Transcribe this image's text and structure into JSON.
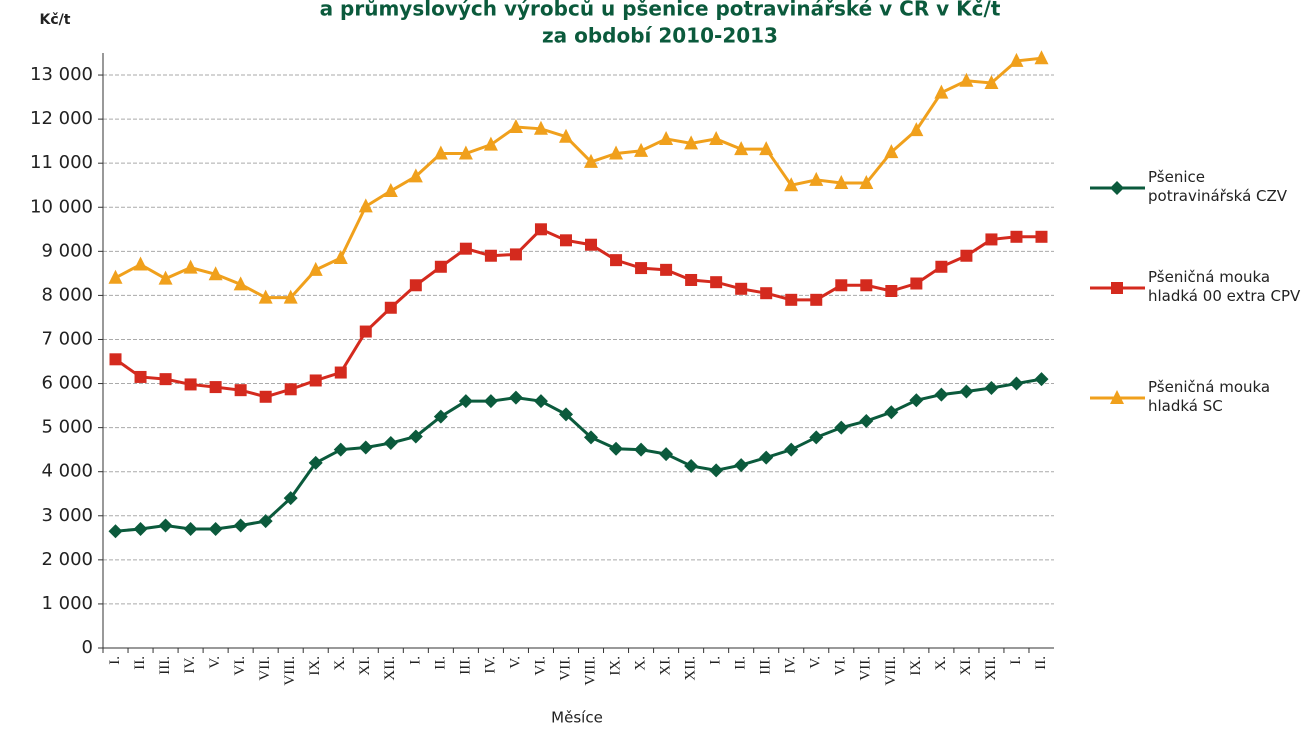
{
  "chart_data": {
    "type": "line",
    "title": [
      "a průmyslových výrobců u pšenice potravinářské v ČR v Kč/t",
      "za období 2010-2013"
    ],
    "y_unit": "Kč/t",
    "xlabel": "Měsíce",
    "categories": [
      "I.",
      "II.",
      "III.",
      "IV.",
      "V.",
      "VI.",
      "VII.",
      "VIII.",
      "IX.",
      "X.",
      "XI.",
      "XII.",
      "I.",
      "II.",
      "III.",
      "IV.",
      "V.",
      "VI.",
      "VII.",
      "VIII.",
      "IX.",
      "X.",
      "XI.",
      "XII.",
      "I.",
      "II.",
      "III.",
      "IV.",
      "V.",
      "VI.",
      "VII.",
      "VIII.",
      "IX.",
      "X.",
      "XI.",
      "XII.",
      "I.",
      "II."
    ],
    "series": [
      {
        "name": "Pšenice potravinářská CZV",
        "color": "#0b5a3c",
        "marker": "diamond",
        "values": [
          2650,
          2700,
          2780,
          2700,
          2700,
          2780,
          2880,
          3400,
          4200,
          4500,
          4550,
          4650,
          4800,
          5250,
          5600,
          5600,
          5680,
          5600,
          5300,
          4780,
          4520,
          4500,
          4400,
          4130,
          4030,
          4150,
          4320,
          4500,
          4780,
          5000,
          5150,
          5350,
          5620,
          5750,
          5820,
          5900,
          6000,
          6100
        ]
      },
      {
        "name": "Pšeničná mouka hladká 00 extra CPV",
        "color": "#d42a1e",
        "marker": "square",
        "values": [
          6550,
          6150,
          6100,
          5980,
          5920,
          5850,
          5700,
          5870,
          6070,
          6250,
          7180,
          7720,
          8230,
          8650,
          9060,
          8900,
          8930,
          9500,
          9250,
          9150,
          8800,
          8620,
          8580,
          8350,
          8300,
          8150,
          8050,
          7900,
          7900,
          8230,
          8230,
          8100,
          8270,
          8650,
          8900,
          9270,
          9330,
          9330
        ]
      },
      {
        "name": "Pšeničná mouka hladká   SC",
        "color": "#f0a01c",
        "marker": "triangle",
        "values": [
          8400,
          8700,
          8380,
          8630,
          8480,
          8250,
          7950,
          7950,
          8580,
          8850,
          10020,
          10370,
          10700,
          11220,
          11220,
          11420,
          11820,
          11780,
          11600,
          11030,
          11220,
          11280,
          11550,
          11450,
          11550,
          11320,
          11320,
          10500,
          10620,
          10550,
          10550,
          11250,
          11750,
          12600,
          12870,
          12820,
          13320,
          13380
        ]
      }
    ],
    "ylim": [
      0,
      13500
    ],
    "yticks": [
      0,
      {
        "value": 1000,
        "label": "1 000"
      },
      {
        "value": 2000,
        "label": "2 000"
      },
      {
        "value": 3000,
        "label": "3 000"
      },
      {
        "value": 4000,
        "label": "4 000"
      },
      {
        "value": 5000,
        "label": "5 000"
      },
      {
        "value": 6000,
        "label": "6 000"
      },
      {
        "value": 7000,
        "label": "7 000"
      },
      {
        "value": 8000,
        "label": "8 000"
      },
      {
        "value": 9000,
        "label": "9 000"
      },
      {
        "value": 10000,
        "label": "10 000"
      },
      {
        "value": 11000,
        "label": "11 000"
      },
      {
        "value": 12000,
        "label": "12 000"
      },
      {
        "value": 13000,
        "label": "13 000"
      }
    ],
    "grid": true
  }
}
